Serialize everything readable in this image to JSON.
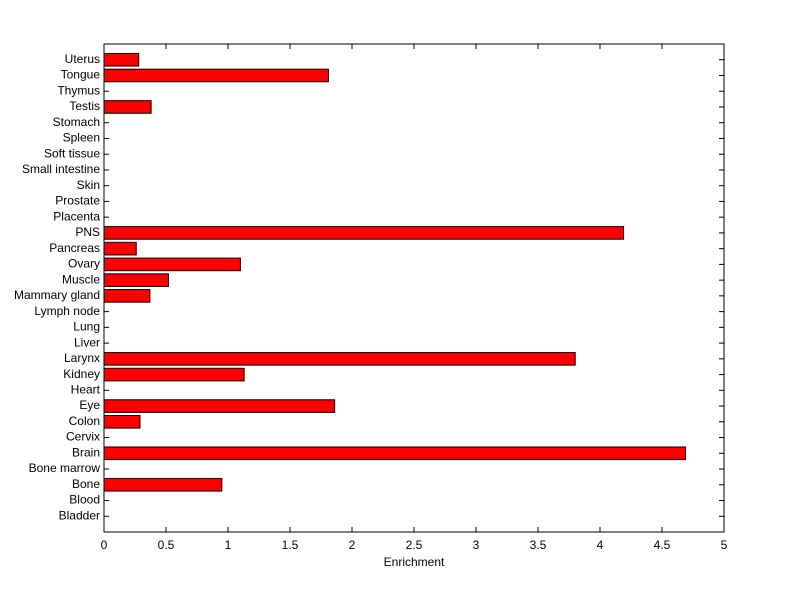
{
  "chart_data": {
    "type": "barh",
    "categories": [
      "Bladder",
      "Blood",
      "Bone",
      "Bone marrow",
      "Brain",
      "Cervix",
      "Colon",
      "Eye",
      "Heart",
      "Kidney",
      "Larynx",
      "Liver",
      "Lung",
      "Lymph node",
      "Mammary gland",
      "Muscle",
      "Ovary",
      "Pancreas",
      "PNS",
      "Placenta",
      "Prostate",
      "Skin",
      "Small intestine",
      "Soft tissue",
      "Spleen",
      "Stomach",
      "Testis",
      "Thymus",
      "Tongue",
      "Uterus"
    ],
    "values": [
      0,
      0,
      0.95,
      0,
      4.69,
      0,
      0.29,
      1.86,
      0,
      1.13,
      3.8,
      0,
      0,
      0,
      0.37,
      0.52,
      1.1,
      0.26,
      4.19,
      0,
      0,
      0,
      0,
      0,
      0,
      0,
      0.38,
      0,
      1.81,
      0.28
    ],
    "color": "#ff0000",
    "xlim": [
      0,
      5
    ],
    "xticks": [
      0,
      0.5,
      1,
      1.5,
      2,
      2.5,
      3,
      3.5,
      4,
      4.5,
      5
    ],
    "xlabel": "Enrichment"
  }
}
